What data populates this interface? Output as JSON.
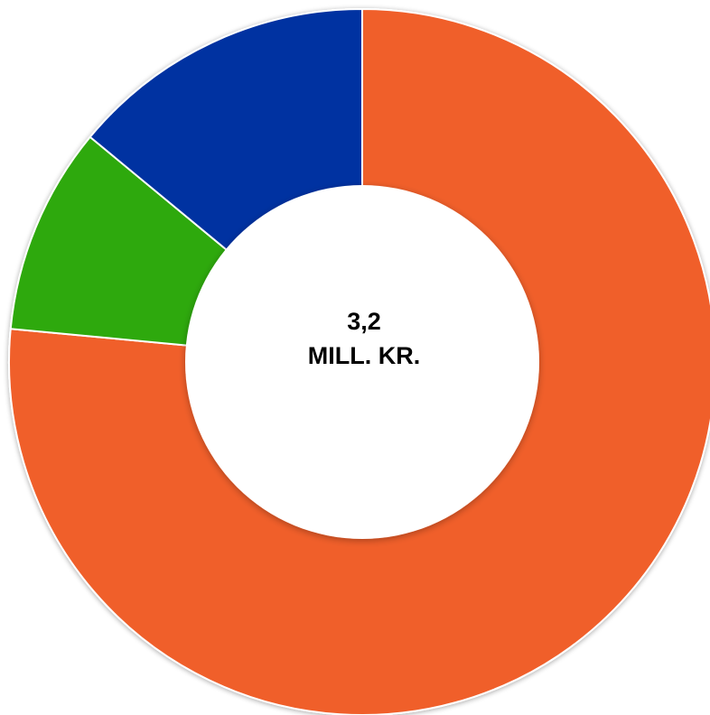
{
  "chart_data": {
    "type": "pie",
    "variant": "donut",
    "center_value": "3,2",
    "center_unit": "MILL. KR.",
    "slices": [
      {
        "value": 76.5,
        "color": "#f05f2c"
      },
      {
        "value": 9.5,
        "color": "#2ea90c"
      },
      {
        "value": 14.0,
        "color": "#0033a1"
      }
    ],
    "legend": false,
    "start_angle": "top",
    "direction": "clockwise",
    "separator_color": "#ffffff"
  }
}
